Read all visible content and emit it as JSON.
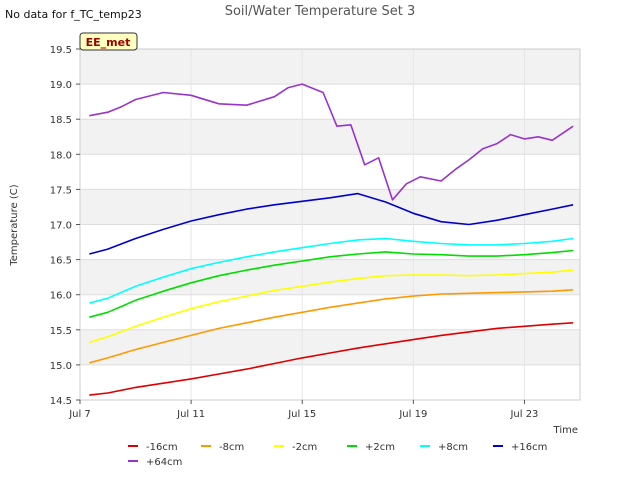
{
  "chart_data": {
    "type": "line",
    "title": "Soil/Water Temperature Set 3",
    "corner_note": "No data for f_TC_temp23",
    "site_badge": "EE_met",
    "xlabel": "Time",
    "ylabel": "Temperature (C)",
    "xlim": [
      "2024-07-07",
      "2024-07-25"
    ],
    "x_ticks": [
      "2024-07-07",
      "2024-07-11",
      "2024-07-15",
      "2024-07-19",
      "2024-07-23"
    ],
    "x_tick_labels": [
      "Jul 7",
      "Jul 11",
      "Jul 15",
      "Jul 19",
      "Jul 23"
    ],
    "ylim": [
      14.5,
      19.5
    ],
    "y_ticks": [
      14.5,
      15.0,
      15.5,
      16.0,
      16.5,
      17.0,
      17.5,
      18.0,
      18.5,
      19.0,
      19.5
    ],
    "y_tick_labels": [
      "14.5",
      "15.0",
      "15.5",
      "16.0",
      "16.5",
      "17.0",
      "17.5",
      "18.0",
      "18.5",
      "19.0",
      "19.5"
    ],
    "grid": true,
    "legend_position": "bottom",
    "series": [
      {
        "name": "-16cm",
        "color": "#dd0000",
        "x": [
          "2024-07-07T08",
          "2024-07-08T00",
          "2024-07-09T00",
          "2024-07-10T00",
          "2024-07-11T00",
          "2024-07-12T00",
          "2024-07-13T00",
          "2024-07-14T00",
          "2024-07-15T00",
          "2024-07-16T00",
          "2024-07-17T00",
          "2024-07-18T00",
          "2024-07-19T00",
          "2024-07-20T00",
          "2024-07-21T00",
          "2024-07-22T00",
          "2024-07-23T00",
          "2024-07-24T00",
          "2024-07-24T18"
        ],
        "values": [
          14.57,
          14.6,
          14.68,
          14.74,
          14.8,
          14.87,
          14.94,
          15.02,
          15.1,
          15.17,
          15.24,
          15.3,
          15.36,
          15.42,
          15.47,
          15.52,
          15.55,
          15.58,
          15.6
        ]
      },
      {
        "name": "-8cm",
        "color": "#ff9900",
        "x": [
          "2024-07-07T08",
          "2024-07-08T00",
          "2024-07-09T00",
          "2024-07-10T00",
          "2024-07-11T00",
          "2024-07-12T00",
          "2024-07-13T00",
          "2024-07-14T00",
          "2024-07-15T00",
          "2024-07-16T00",
          "2024-07-17T00",
          "2024-07-18T00",
          "2024-07-19T00",
          "2024-07-20T00",
          "2024-07-21T00",
          "2024-07-22T00",
          "2024-07-23T00",
          "2024-07-24T00",
          "2024-07-24T18"
        ],
        "values": [
          15.03,
          15.1,
          15.22,
          15.32,
          15.42,
          15.52,
          15.6,
          15.68,
          15.75,
          15.82,
          15.88,
          15.94,
          15.98,
          16.01,
          16.02,
          16.03,
          16.04,
          16.05,
          16.07
        ]
      },
      {
        "name": "-2cm",
        "color": "#ffff00",
        "x": [
          "2024-07-07T08",
          "2024-07-08T00",
          "2024-07-09T00",
          "2024-07-10T00",
          "2024-07-11T00",
          "2024-07-12T00",
          "2024-07-13T00",
          "2024-07-14T00",
          "2024-07-15T00",
          "2024-07-16T00",
          "2024-07-17T00",
          "2024-07-18T00",
          "2024-07-19T00",
          "2024-07-20T00",
          "2024-07-21T00",
          "2024-07-22T00",
          "2024-07-23T00",
          "2024-07-24T00",
          "2024-07-24T18"
        ],
        "values": [
          15.32,
          15.4,
          15.55,
          15.68,
          15.8,
          15.9,
          15.98,
          16.06,
          16.12,
          16.18,
          16.23,
          16.27,
          16.28,
          16.28,
          16.27,
          16.28,
          16.3,
          16.32,
          16.35
        ]
      },
      {
        "name": "+2cm",
        "color": "#00dd00",
        "x": [
          "2024-07-07T08",
          "2024-07-08T00",
          "2024-07-09T00",
          "2024-07-10T00",
          "2024-07-11T00",
          "2024-07-12T00",
          "2024-07-13T00",
          "2024-07-14T00",
          "2024-07-15T00",
          "2024-07-16T00",
          "2024-07-17T00",
          "2024-07-18T00",
          "2024-07-19T00",
          "2024-07-20T00",
          "2024-07-21T00",
          "2024-07-22T00",
          "2024-07-23T00",
          "2024-07-24T00",
          "2024-07-24T18"
        ],
        "values": [
          15.68,
          15.75,
          15.92,
          16.05,
          16.17,
          16.27,
          16.35,
          16.42,
          16.48,
          16.54,
          16.58,
          16.61,
          16.58,
          16.57,
          16.55,
          16.55,
          16.57,
          16.6,
          16.63
        ]
      },
      {
        "name": "+8cm",
        "color": "#00ffff",
        "x": [
          "2024-07-07T08",
          "2024-07-08T00",
          "2024-07-09T00",
          "2024-07-10T00",
          "2024-07-11T00",
          "2024-07-12T00",
          "2024-07-13T00",
          "2024-07-14T00",
          "2024-07-15T00",
          "2024-07-16T00",
          "2024-07-17T00",
          "2024-07-18T00",
          "2024-07-19T00",
          "2024-07-20T00",
          "2024-07-21T00",
          "2024-07-22T00",
          "2024-07-23T00",
          "2024-07-24T00",
          "2024-07-24T18"
        ],
        "values": [
          15.88,
          15.95,
          16.12,
          16.25,
          16.37,
          16.46,
          16.54,
          16.61,
          16.67,
          16.73,
          16.78,
          16.8,
          16.76,
          16.73,
          16.71,
          16.71,
          16.73,
          16.76,
          16.8
        ]
      },
      {
        "name": "+16cm",
        "color": "#0000cc",
        "x": [
          "2024-07-07T08",
          "2024-07-08T00",
          "2024-07-09T00",
          "2024-07-10T00",
          "2024-07-11T00",
          "2024-07-12T00",
          "2024-07-13T00",
          "2024-07-14T00",
          "2024-07-15T00",
          "2024-07-16T00",
          "2024-07-17T00",
          "2024-07-18T00",
          "2024-07-19T00",
          "2024-07-20T00",
          "2024-07-21T00",
          "2024-07-22T00",
          "2024-07-23T00",
          "2024-07-24T00",
          "2024-07-24T18"
        ],
        "values": [
          16.58,
          16.65,
          16.8,
          16.93,
          17.05,
          17.14,
          17.22,
          17.28,
          17.33,
          17.38,
          17.44,
          17.32,
          17.16,
          17.04,
          17.0,
          17.06,
          17.14,
          17.22,
          17.28
        ]
      },
      {
        "name": "+64cm",
        "color": "#9933cc",
        "x": [
          "2024-07-07T08",
          "2024-07-08T00",
          "2024-07-08T12",
          "2024-07-09T00",
          "2024-07-10T00",
          "2024-07-11T00",
          "2024-07-12T00",
          "2024-07-13T00",
          "2024-07-14T00",
          "2024-07-14T12",
          "2024-07-15T00",
          "2024-07-15T18",
          "2024-07-16T06",
          "2024-07-16T18",
          "2024-07-17T06",
          "2024-07-17T18",
          "2024-07-18T06",
          "2024-07-18T18",
          "2024-07-19T06",
          "2024-07-20T00",
          "2024-07-20T12",
          "2024-07-21T00",
          "2024-07-21T12",
          "2024-07-22T00",
          "2024-07-22T12",
          "2024-07-23T00",
          "2024-07-23T12",
          "2024-07-24T00",
          "2024-07-24T18"
        ],
        "values": [
          18.55,
          18.6,
          18.68,
          18.78,
          18.88,
          18.84,
          18.72,
          18.7,
          18.82,
          18.95,
          19.0,
          18.88,
          18.4,
          18.42,
          17.85,
          17.95,
          17.35,
          17.58,
          17.68,
          17.62,
          17.78,
          17.92,
          18.08,
          18.15,
          18.28,
          18.22,
          18.25,
          18.2,
          18.4
        ]
      }
    ]
  }
}
